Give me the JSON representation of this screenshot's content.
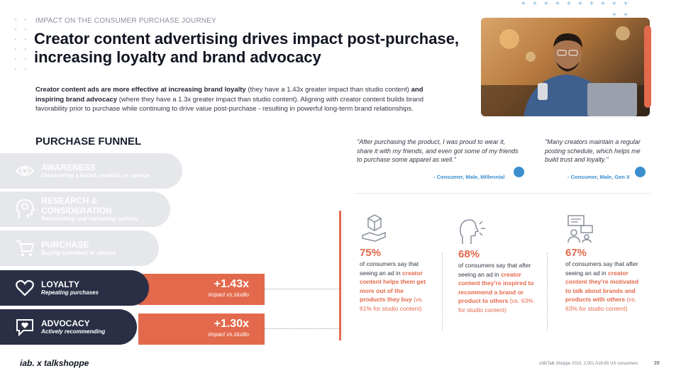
{
  "eyebrow": "IMPACT ON THE CONSUMER PURCHASE JOURNEY",
  "headline": "Creator content advertising drives impact post-purchase, increasing loyalty and brand advocacy",
  "intro": {
    "bold1": "Creator content ads are more effective at increasing brand loyalty",
    "text1": " (they have a 1.43x greater impact than studio content) ",
    "and": "and",
    "bold2": "inspiring brand advocacy",
    "text2": " (where they have a 1.3x greater impact than studio content). Aligning with creator content builds brand favorability prior to purchase while continuing to drive value post-purchase - resulting in powerful long-term brand relationships."
  },
  "funnel": {
    "title": "PURCHASE FUNNEL",
    "stages": [
      {
        "name": "AWARENESS",
        "desc": "Discovering a brand, product, or service",
        "icon": "eye-icon"
      },
      {
        "name": "RESEARCH &",
        "name2": "CONSIDERATION",
        "desc": "Researching and narrowing options",
        "icon": "head-gears-icon"
      },
      {
        "name": "PURCHASE",
        "desc": "Buying a product or service",
        "icon": "cart-icon"
      },
      {
        "name": "LOYALTY",
        "desc": "Repeating purchases",
        "icon": "heart-icon",
        "impact": "+1.43x",
        "impact_label": "impact vs.studio"
      },
      {
        "name": "ADVOCACY",
        "desc": "Actively recommending",
        "icon": "chat-heart-icon",
        "impact": "+1.30x",
        "impact_label": "impact vs.studio"
      }
    ]
  },
  "quotes": [
    {
      "text": "\"After purchasing the product, I was proud to wear it, share it with my friends, and even got some of my friends to purchase some apparel as well.\"",
      "attribution": "- Consumer, Male, Millennial"
    },
    {
      "text": "\"Many creators maintain a regular posting schedule, which helps me build trust and loyalty.\"",
      "attribution": "- Consumer, Male, Gen X"
    }
  ],
  "stats": [
    {
      "pct": "75%",
      "lead": "of consumers say that seeing an ad in ",
      "highlight": "creator content helps them get more out of the products they buy",
      "tail": " (vs. 61% for studio content)",
      "icon": "hand-box-icon"
    },
    {
      "pct": "68%",
      "lead": "of consumers say that after seeing an ad in ",
      "highlight": "creator content they're inspired to recommend a brand or product to others",
      "tail": " (vs. 63% for studio content)",
      "icon": "speaking-head-icon"
    },
    {
      "pct": "67%",
      "lead": "of consumers say that after seeing an ad in ",
      "highlight": "creator content they're motivated to talk about brands and products with others",
      "tail": " (vs. 63% for studio content)",
      "icon": "conversation-icon"
    }
  ],
  "footer": {
    "source": "IAB/Talk Shoppe 2023, 2,001 A18-65 US consumers",
    "page": "28",
    "logo_text": "iab. x talkshoppe"
  },
  "colors": {
    "accent": "#e3694c",
    "navy": "#2a2f45",
    "muted": "#e6e7ea",
    "link": "#3b8fcf"
  }
}
